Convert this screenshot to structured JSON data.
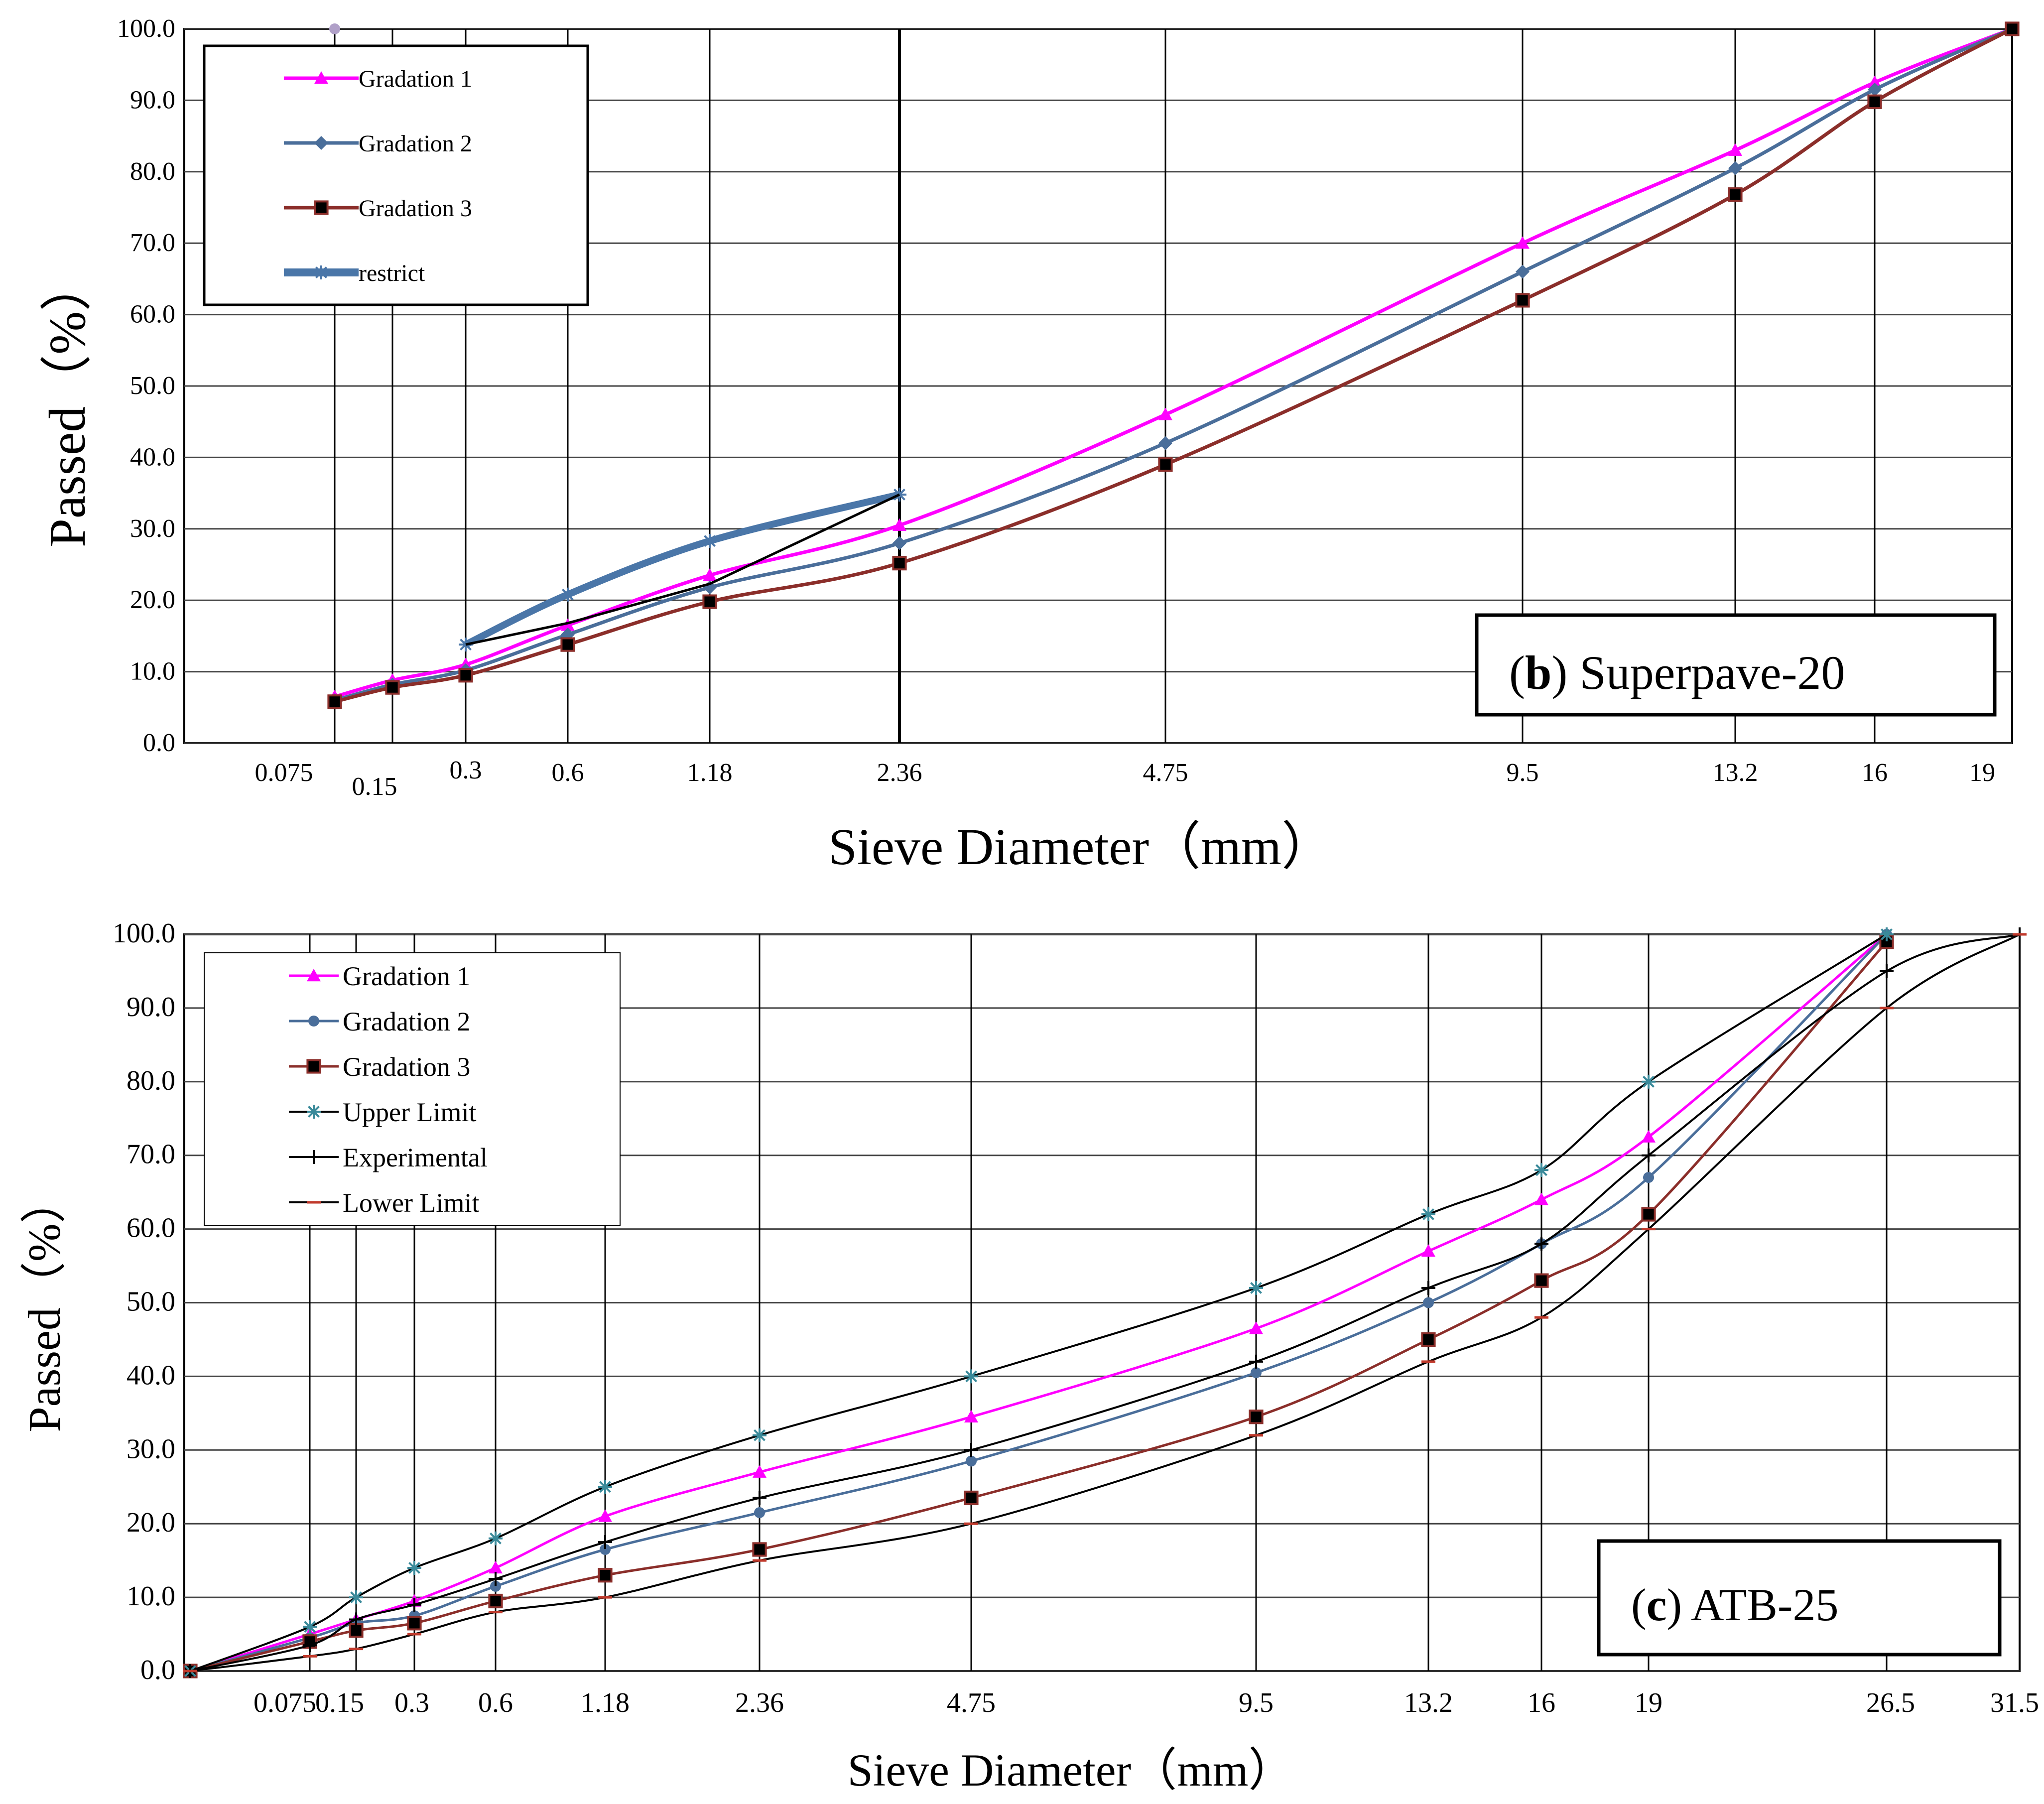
{
  "colors": {
    "gradation_1": "#ff00ff",
    "gradation_2": "#4a6e9a",
    "gradation_3": "#8b2e2a",
    "restrict": "#4a76a8",
    "limit": "#000000",
    "grid": "#000000"
  },
  "chart_data": [
    {
      "type": "line",
      "id": "b",
      "panel_label": {
        "letter": "b",
        "text": "Superpave-20"
      },
      "title": "(b) Superpave-20",
      "xlabel": "Sieve Diameter（mm）",
      "ylabel": "Passed（%）",
      "ylim": [
        0,
        100
      ],
      "y_ticks": [
        "0.0",
        "10.0",
        "20.0",
        "30.0",
        "40.0",
        "50.0",
        "60.0",
        "70.0",
        "80.0",
        "90.0",
        "100.0"
      ],
      "x_categories": [
        "0.075",
        "0.15",
        "0.3",
        "0.6",
        "1.18",
        "2.36",
        "4.75",
        "9.5",
        "13.2",
        "16",
        "19"
      ],
      "legend": [
        "Gradation 1",
        "Gradation 2",
        "Gradation 3",
        "restrict"
      ],
      "legend_position": "top-left",
      "series": [
        {
          "name": "Gradation 1",
          "x": [
            "0.075",
            "0.15",
            "0.3",
            "0.6",
            "1.18",
            "2.36",
            "4.75",
            "9.5",
            "13.2",
            "16",
            "19"
          ],
          "values": [
            6.5,
            8.8,
            11.0,
            16.5,
            23.5,
            30.5,
            46.0,
            70.0,
            83.0,
            92.5,
            100.0
          ]
        },
        {
          "name": "Gradation 2",
          "x": [
            "0.075",
            "0.15",
            "0.3",
            "0.6",
            "1.18",
            "2.36",
            "4.75",
            "9.5",
            "13.2",
            "16",
            "19"
          ],
          "values": [
            6.0,
            8.2,
            10.2,
            15.2,
            21.8,
            28.0,
            42.0,
            66.0,
            80.5,
            91.5,
            100.0
          ]
        },
        {
          "name": "Gradation 3",
          "x": [
            "0.075",
            "0.15",
            "0.3",
            "0.6",
            "1.18",
            "2.36",
            "4.75",
            "9.5",
            "13.2",
            "16",
            "19"
          ],
          "values": [
            5.8,
            7.8,
            9.5,
            13.8,
            19.8,
            25.2,
            39.0,
            62.0,
            76.8,
            89.8,
            100.0
          ]
        },
        {
          "name": "restrict",
          "x": [
            "0.3",
            "0.6",
            "1.18",
            "2.36"
          ],
          "values": [
            13.8,
            20.8,
            28.3,
            34.8
          ]
        },
        {
          "name": "restrict_lower",
          "x": [
            "0.3",
            "0.6",
            "1.18",
            "2.36"
          ],
          "values": [
            13.8,
            16.8,
            22.3,
            34.8
          ]
        },
        {
          "name": "max_density_marker",
          "x": [
            "0.075"
          ],
          "values": [
            100.0
          ]
        }
      ]
    },
    {
      "type": "line",
      "id": "c",
      "panel_label": {
        "letter": "c",
        "text": "ATB-25"
      },
      "title": "(c) ATB-25",
      "xlabel": "Sieve Diameter（mm）",
      "ylabel": "Passed（%）",
      "ylim": [
        0,
        100
      ],
      "y_ticks": [
        "0.0",
        "10.0",
        "20.0",
        "30.0",
        "40.0",
        "50.0",
        "60.0",
        "70.0",
        "80.0",
        "90.0",
        "100.0"
      ],
      "x_categories": [
        "0",
        "0.075",
        "0.15",
        "0.3",
        "0.6",
        "1.18",
        "2.36",
        "4.75",
        "9.5",
        "13.2",
        "16",
        "19",
        "26.5",
        "31.5"
      ],
      "legend": [
        "Gradation 1",
        "Gradation 2",
        "Gradation 3",
        "Upper Limit",
        "Experimental",
        "Lower Limit"
      ],
      "legend_position": "top-left",
      "series": [
        {
          "name": "Gradation 1",
          "x": [
            "0",
            "0.075",
            "0.15",
            "0.3",
            "0.6",
            "1.18",
            "2.36",
            "4.75",
            "9.5",
            "13.2",
            "16",
            "19",
            "26.5"
          ],
          "values": [
            0,
            5.0,
            7.0,
            9.5,
            14.0,
            21.0,
            27.0,
            34.5,
            46.5,
            57.0,
            64.0,
            72.5,
            100.0
          ]
        },
        {
          "name": "Gradation 2",
          "x": [
            "0",
            "0.075",
            "0.15",
            "0.3",
            "0.6",
            "1.18",
            "2.36",
            "4.75",
            "9.5",
            "13.2",
            "16",
            "19",
            "26.5"
          ],
          "values": [
            0,
            4.5,
            6.5,
            7.5,
            11.5,
            16.5,
            21.5,
            28.5,
            40.5,
            50.0,
            58.0,
            67.0,
            100.0
          ]
        },
        {
          "name": "Gradation 3",
          "x": [
            "0",
            "0.075",
            "0.15",
            "0.3",
            "0.6",
            "1.18",
            "2.36",
            "4.75",
            "9.5",
            "13.2",
            "16",
            "19",
            "26.5"
          ],
          "values": [
            0,
            4.0,
            5.5,
            6.5,
            9.5,
            13.0,
            16.5,
            23.5,
            34.5,
            45.0,
            53.0,
            62.0,
            99.0
          ]
        },
        {
          "name": "Upper Limit",
          "x": [
            "0",
            "0.075",
            "0.15",
            "0.3",
            "0.6",
            "1.18",
            "2.36",
            "4.75",
            "9.5",
            "13.2",
            "16",
            "19",
            "26.5"
          ],
          "values": [
            0,
            6.0,
            10.0,
            14.0,
            18.0,
            25.0,
            32.0,
            40.0,
            52.0,
            62.0,
            68.0,
            80.0,
            100.0
          ]
        },
        {
          "name": "Experimental",
          "x": [
            "0",
            "0.075",
            "0.15",
            "0.3",
            "0.6",
            "1.18",
            "2.36",
            "4.75",
            "9.5",
            "13.2",
            "16",
            "19",
            "26.5",
            "31.5"
          ],
          "values": [
            0,
            3.5,
            7.0,
            9.0,
            12.5,
            17.5,
            23.5,
            30.0,
            42.0,
            52.0,
            58.0,
            70.0,
            95.0,
            100.0
          ]
        },
        {
          "name": "Lower Limit",
          "x": [
            "0",
            "0.075",
            "0.15",
            "0.3",
            "0.6",
            "1.18",
            "2.36",
            "4.75",
            "9.5",
            "13.2",
            "16",
            "19",
            "26.5",
            "31.5"
          ],
          "values": [
            0,
            2.0,
            3.0,
            5.0,
            8.0,
            10.0,
            15.0,
            20.0,
            32.0,
            42.0,
            48.0,
            60.0,
            90.0,
            100.0
          ]
        }
      ]
    }
  ]
}
